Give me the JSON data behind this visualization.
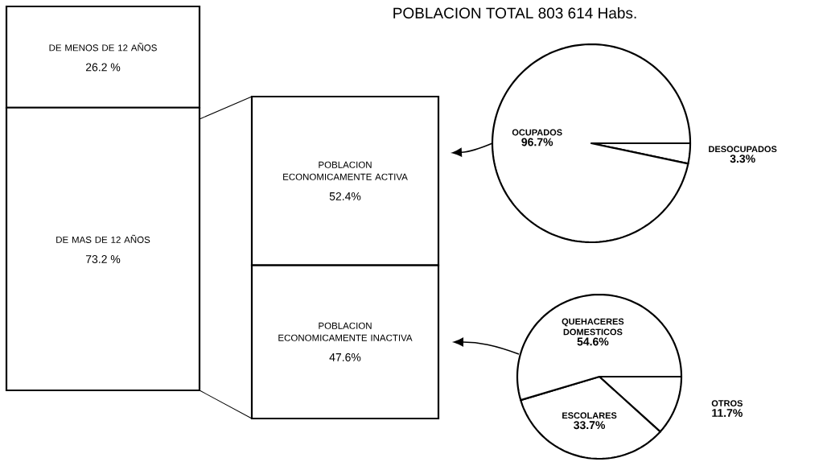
{
  "chart_data": [
    {
      "type": "bar",
      "stacked": true,
      "categories": [
        null
      ],
      "series": [
        {
          "name": "DE MAS DE 12 AÑOS",
          "color": "#ffffff",
          "values": [
            73.2
          ],
          "value_labels": [
            "73.2 %"
          ]
        },
        {
          "name": "DE MENOS DE 12 AÑOS",
          "color": "#ffffff",
          "values": [
            26.2
          ],
          "value_labels": [
            "26.2 %"
          ]
        }
      ]
    },
    {
      "type": "bar",
      "stacked": true,
      "categories": [
        null
      ],
      "series": [
        {
          "name": "POBLACION ECONOMICAMENTE INACTIVA",
          "color": "#ffffff",
          "values": [
            47.6
          ],
          "value_labels": [
            "47.6%"
          ]
        },
        {
          "name": "POBLACION ECONOMICAMENTE ACTIVA",
          "color": "#ffffff",
          "values": [
            52.4
          ],
          "value_labels": [
            "52.4%"
          ]
        }
      ]
    },
    {
      "type": "pie",
      "title": "POBLACION TOTAL 803 614 Habs.",
      "categories": [
        "DESOCUPADOS",
        "OCUPADOS"
      ],
      "values": [
        3.3,
        96.7
      ],
      "colors": [
        "#ffffff",
        "#ffffff"
      ],
      "value_labels": [
        "3.3%",
        "96.7%"
      ]
    },
    {
      "type": "pie",
      "categories": [
        "OTROS",
        "ESCOLARES",
        "QUEHACERES DOMESTICOS"
      ],
      "values": [
        11.7,
        33.7,
        54.6
      ],
      "colors": [
        "#ffffff",
        "#ffffff",
        "#ffffff"
      ],
      "value_labels": [
        "11.7%",
        "33.7%",
        "54.6%"
      ]
    }
  ]
}
